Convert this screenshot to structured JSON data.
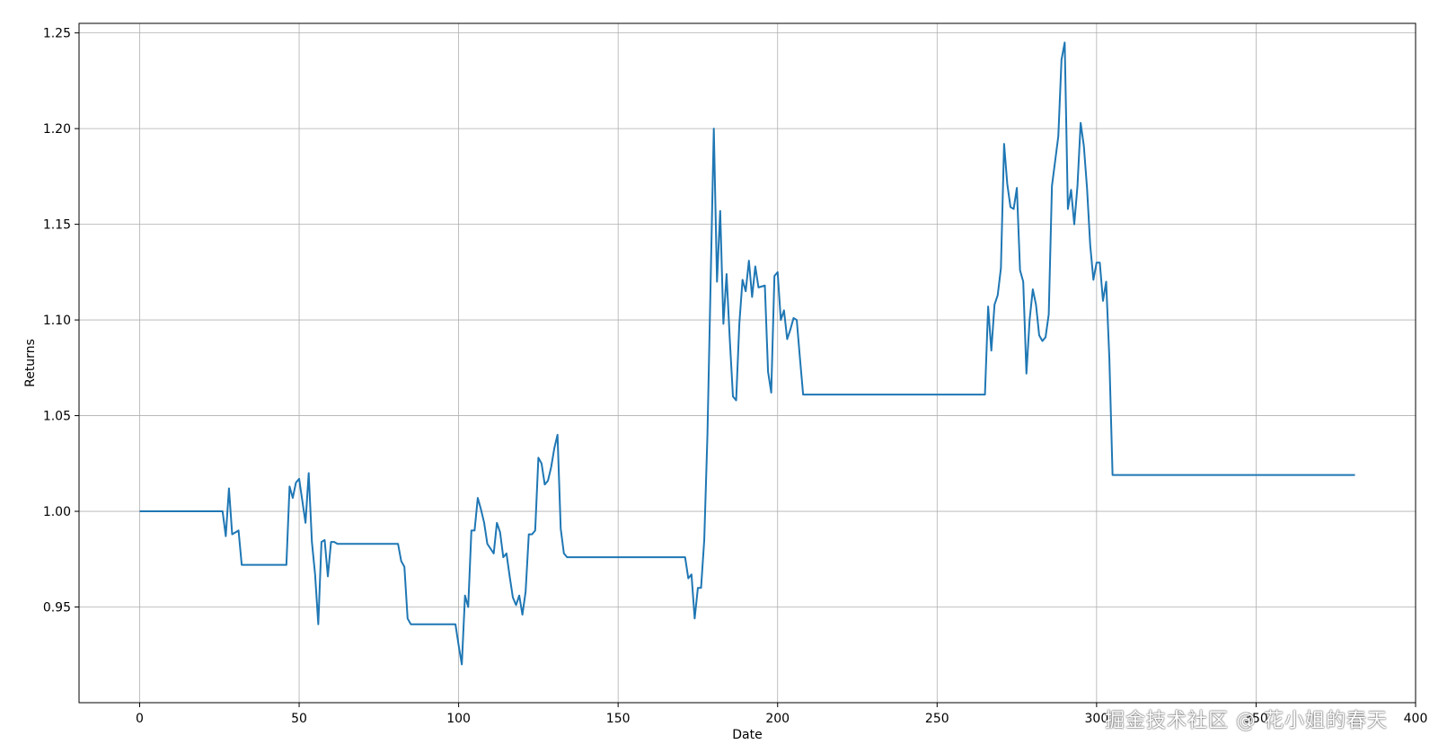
{
  "chart_data": {
    "type": "line",
    "title": "",
    "xlabel": "Date",
    "ylabel": "Returns",
    "xlim": [
      -19,
      400
    ],
    "ylim": [
      0.9,
      1.255
    ],
    "grid": true,
    "x_ticks": [
      0,
      50,
      100,
      150,
      200,
      250,
      300,
      350,
      400
    ],
    "y_ticks": [
      0.95,
      1.0,
      1.05,
      1.1,
      1.15,
      1.2,
      1.25
    ],
    "x_tick_labels": [
      "0",
      "50",
      "100",
      "150",
      "200",
      "250",
      "300",
      "350",
      "400"
    ],
    "y_tick_labels": [
      "0.95",
      "1.00",
      "1.05",
      "1.10",
      "1.15",
      "1.20",
      "1.25"
    ],
    "line_color": "#1f77b4",
    "series": [
      {
        "points": [
          [
            0,
            1.0
          ],
          [
            26,
            1.0
          ],
          [
            27,
            0.987
          ],
          [
            28,
            1.012
          ],
          [
            29,
            0.988
          ],
          [
            31,
            0.99
          ],
          [
            32,
            0.972
          ],
          [
            46,
            0.972
          ],
          [
            47,
            1.013
          ],
          [
            48,
            1.007
          ],
          [
            49,
            1.015
          ],
          [
            50,
            1.017
          ],
          [
            52,
            0.994
          ],
          [
            53,
            1.02
          ],
          [
            54,
            0.984
          ],
          [
            55,
            0.967
          ],
          [
            56,
            0.941
          ],
          [
            57,
            0.984
          ],
          [
            58,
            0.985
          ],
          [
            59,
            0.966
          ],
          [
            60,
            0.984
          ],
          [
            61,
            0.984
          ],
          [
            62,
            0.983
          ],
          [
            81,
            0.983
          ],
          [
            82,
            0.974
          ],
          [
            83,
            0.971
          ],
          [
            84,
            0.944
          ],
          [
            85,
            0.941
          ],
          [
            99,
            0.941
          ],
          [
            100,
            0.93
          ],
          [
            101,
            0.92
          ],
          [
            102,
            0.956
          ],
          [
            103,
            0.95
          ],
          [
            104,
            0.99
          ],
          [
            105,
            0.99
          ],
          [
            106,
            1.007
          ],
          [
            107,
            1.001
          ],
          [
            108,
            0.994
          ],
          [
            109,
            0.983
          ],
          [
            111,
            0.978
          ],
          [
            112,
            0.994
          ],
          [
            113,
            0.989
          ],
          [
            114,
            0.976
          ],
          [
            115,
            0.978
          ],
          [
            116,
            0.966
          ],
          [
            117,
            0.955
          ],
          [
            118,
            0.951
          ],
          [
            119,
            0.956
          ],
          [
            120,
            0.946
          ],
          [
            121,
            0.958
          ],
          [
            122,
            0.988
          ],
          [
            123,
            0.988
          ],
          [
            124,
            0.99
          ],
          [
            125,
            1.028
          ],
          [
            126,
            1.025
          ],
          [
            127,
            1.014
          ],
          [
            128,
            1.016
          ],
          [
            129,
            1.023
          ],
          [
            130,
            1.033
          ],
          [
            131,
            1.04
          ],
          [
            132,
            0.991
          ],
          [
            133,
            0.978
          ],
          [
            134,
            0.976
          ],
          [
            171,
            0.976
          ],
          [
            172,
            0.965
          ],
          [
            173,
            0.967
          ],
          [
            174,
            0.944
          ],
          [
            175,
            0.96
          ],
          [
            176,
            0.96
          ],
          [
            177,
            0.985
          ],
          [
            178,
            1.04
          ],
          [
            179,
            1.12
          ],
          [
            180,
            1.2
          ],
          [
            181,
            1.12
          ],
          [
            182,
            1.157
          ],
          [
            183,
            1.098
          ],
          [
            184,
            1.124
          ],
          [
            185,
            1.09
          ],
          [
            186,
            1.06
          ],
          [
            187,
            1.058
          ],
          [
            188,
            1.098
          ],
          [
            189,
            1.121
          ],
          [
            190,
            1.115
          ],
          [
            191,
            1.131
          ],
          [
            192,
            1.112
          ],
          [
            193,
            1.128
          ],
          [
            194,
            1.117
          ],
          [
            196,
            1.118
          ],
          [
            197,
            1.073
          ],
          [
            198,
            1.062
          ],
          [
            199,
            1.123
          ],
          [
            200,
            1.125
          ],
          [
            201,
            1.1
          ],
          [
            202,
            1.105
          ],
          [
            203,
            1.09
          ],
          [
            204,
            1.095
          ],
          [
            205,
            1.101
          ],
          [
            206,
            1.1
          ],
          [
            207,
            1.08
          ],
          [
            208,
            1.061
          ],
          [
            265,
            1.061
          ],
          [
            266,
            1.107
          ],
          [
            267,
            1.084
          ],
          [
            268,
            1.108
          ],
          [
            269,
            1.113
          ],
          [
            270,
            1.127
          ],
          [
            271,
            1.192
          ],
          [
            272,
            1.171
          ],
          [
            273,
            1.159
          ],
          [
            274,
            1.158
          ],
          [
            275,
            1.169
          ],
          [
            276,
            1.126
          ],
          [
            277,
            1.12
          ],
          [
            278,
            1.072
          ],
          [
            279,
            1.1
          ],
          [
            280,
            1.116
          ],
          [
            281,
            1.108
          ],
          [
            282,
            1.092
          ],
          [
            283,
            1.089
          ],
          [
            284,
            1.091
          ],
          [
            285,
            1.103
          ],
          [
            286,
            1.17
          ],
          [
            287,
            1.183
          ],
          [
            288,
            1.196
          ],
          [
            289,
            1.236
          ],
          [
            290,
            1.245
          ],
          [
            291,
            1.158
          ],
          [
            292,
            1.168
          ],
          [
            293,
            1.15
          ],
          [
            294,
            1.17
          ],
          [
            295,
            1.203
          ],
          [
            296,
            1.191
          ],
          [
            297,
            1.169
          ],
          [
            298,
            1.139
          ],
          [
            299,
            1.121
          ],
          [
            300,
            1.13
          ],
          [
            301,
            1.13
          ],
          [
            302,
            1.11
          ],
          [
            303,
            1.12
          ],
          [
            304,
            1.08
          ],
          [
            305,
            1.019
          ],
          [
            381,
            1.019
          ]
        ]
      }
    ]
  },
  "watermark": "掘金技术社区 @ 花小姐的春天"
}
